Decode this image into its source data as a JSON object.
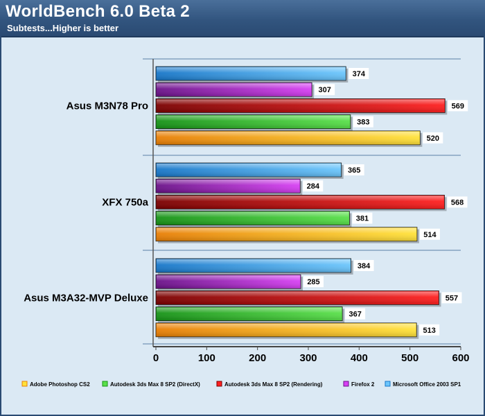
{
  "header": {
    "title": "WorldBench 6.0 Beta 2",
    "subtitle": "Subtests...Higher is better"
  },
  "colors": {
    "header_bg": "#32557f",
    "plot_bg": "#dbe9f4",
    "Adobe Photoshop CS2": [
      "#e87e05",
      "#ffe23a"
    ],
    "Autodesk 3ds Max 8 SP2 (DirectX)": [
      "#169216",
      "#59e04a"
    ],
    "Autodesk 3ds Max 8 SP2 (Rendering)": [
      "#7a0000",
      "#ff2020"
    ],
    "Firefox 2": [
      "#6a1288",
      "#d840f4"
    ],
    "Microsoft Office 2003 SP1": [
      "#1776c8",
      "#6cc6fc"
    ]
  },
  "chart_data": {
    "type": "bar",
    "orientation": "horizontal",
    "title": "WorldBench 6.0 Beta 2",
    "subtitle": "Subtests...Higher is better",
    "categories": [
      "Asus M3N78 Pro",
      "XFX 750a",
      "Asus M3A32-MVP Deluxe"
    ],
    "series": [
      {
        "name": "Microsoft Office 2003 SP1",
        "values": [
          374,
          365,
          384
        ]
      },
      {
        "name": "Firefox 2",
        "values": [
          307,
          284,
          285
        ]
      },
      {
        "name": "Autodesk 3ds Max 8 SP2 (Rendering)",
        "values": [
          569,
          568,
          557
        ]
      },
      {
        "name": "Autodesk 3ds Max 8 SP2 (DirectX)",
        "values": [
          383,
          381,
          367
        ]
      },
      {
        "name": "Adobe Photoshop CS2",
        "values": [
          520,
          514,
          513
        ]
      }
    ],
    "legend_order": [
      "Adobe Photoshop CS2",
      "Autodesk 3ds Max 8 SP2 (DirectX)",
      "Autodesk 3ds Max 8 SP2 (Rendering)",
      "Firefox 2",
      "Microsoft Office 2003 SP1"
    ],
    "xticks": [
      "0",
      "100",
      "200",
      "300",
      "400",
      "500",
      "600"
    ],
    "xlim": [
      0,
      600
    ],
    "xlabel": "",
    "ylabel": "",
    "legend_position": "bottom",
    "grid": false,
    "data_labels": true
  }
}
